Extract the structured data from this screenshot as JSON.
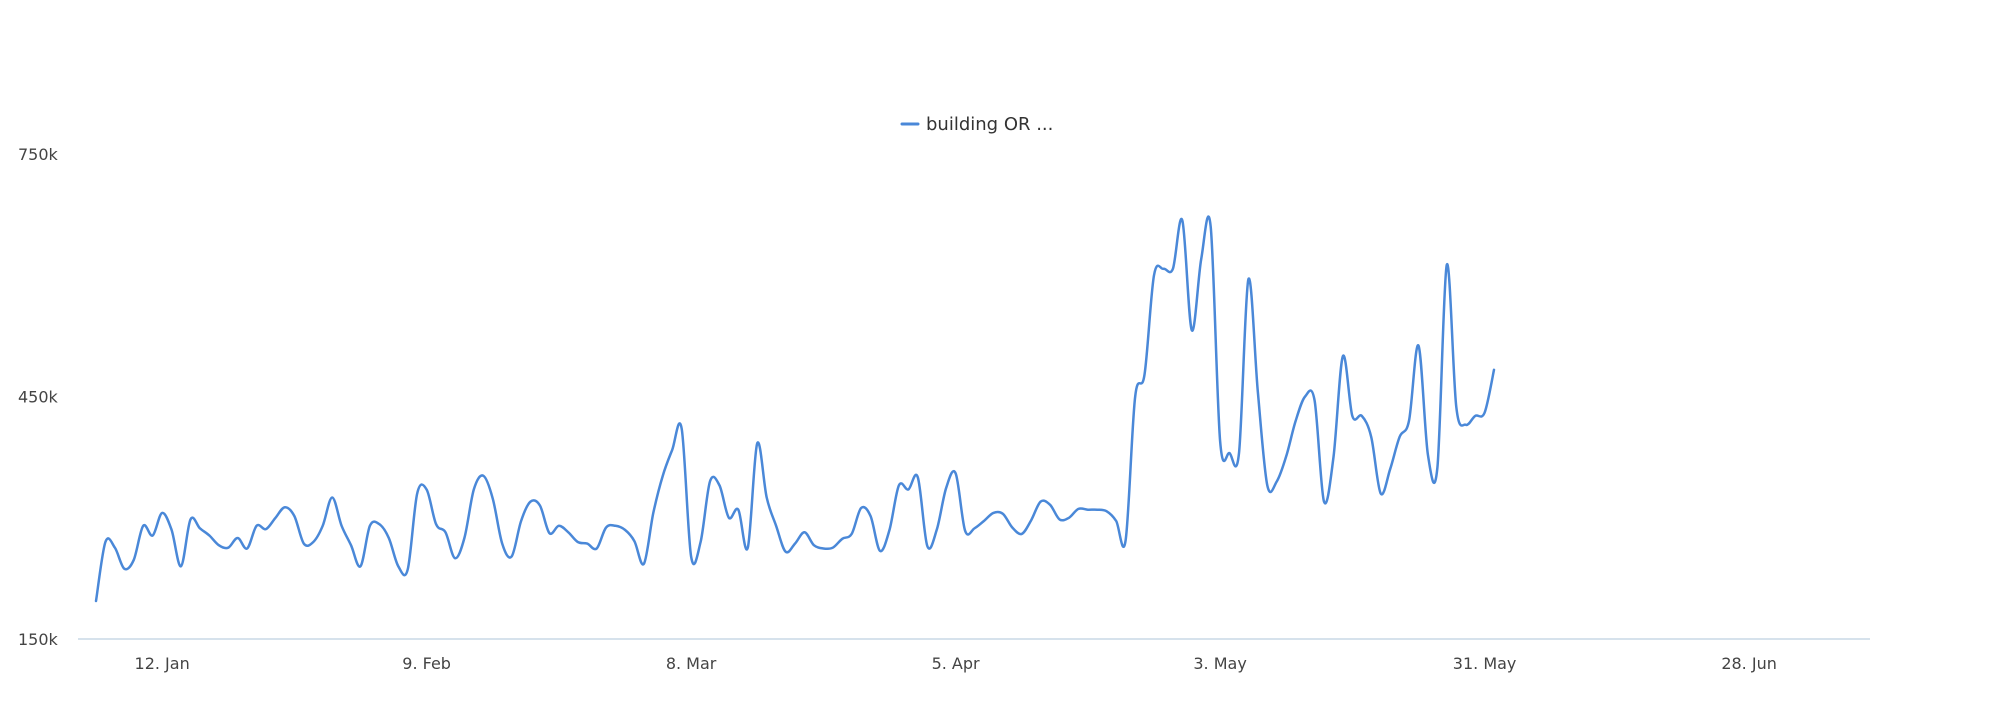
{
  "chart_data": {
    "type": "line",
    "title": "",
    "xlabel": "",
    "ylabel": "",
    "legend": {
      "placement": "top-center"
    },
    "grid": false,
    "x_start": "2020-01-05",
    "xlim": [
      "2020-01-05",
      "2020-07-09"
    ],
    "ylim": [
      150000,
      750000
    ],
    "yticks": [
      {
        "value": 150000,
        "label": "150k"
      },
      {
        "value": 450000,
        "label": "450k"
      },
      {
        "value": 750000,
        "label": "750k"
      }
    ],
    "xticks": [
      {
        "date": "2020-01-12",
        "label": "12. Jan"
      },
      {
        "date": "2020-02-09",
        "label": "9. Feb"
      },
      {
        "date": "2020-03-08",
        "label": "8. Mar"
      },
      {
        "date": "2020-04-05",
        "label": "5. Apr"
      },
      {
        "date": "2020-05-03",
        "label": "3. May"
      },
      {
        "date": "2020-05-31",
        "label": "31. May"
      },
      {
        "date": "2020-06-28",
        "label": "28. Jun"
      }
    ],
    "series": [
      {
        "name": "building OR ...",
        "color": "#4a88d8",
        "values": [
          197000,
          270000,
          263000,
          237000,
          248000,
          290000,
          278000,
          306000,
          285000,
          240000,
          298000,
          287000,
          278000,
          266000,
          263000,
          275000,
          262000,
          290000,
          286000,
          300000,
          313000,
          302000,
          268000,
          270000,
          290000,
          325000,
          290000,
          266000,
          240000,
          290000,
          292000,
          275000,
          240000,
          236000,
          330000,
          335000,
          292000,
          282000,
          250000,
          275000,
          335000,
          352000,
          324000,
          268000,
          252000,
          296000,
          320000,
          315000,
          281000,
          290000,
          282000,
          270000,
          268000,
          262000,
          288000,
          290000,
          285000,
          271000,
          243000,
          306000,
          352000,
          384000,
          410000,
          252000,
          270000,
          345000,
          340000,
          300000,
          310000,
          263000,
          392000,
          325000,
          290000,
          258000,
          268000,
          282000,
          266000,
          262000,
          263000,
          274000,
          280000,
          312000,
          302000,
          259000,
          285000,
          340000,
          335000,
          350000,
          265000,
          285000,
          337000,
          355000,
          284000,
          287000,
          296000,
          306000,
          305000,
          288000,
          280000,
          297000,
          320000,
          316000,
          298000,
          300000,
          311000,
          310000,
          310000,
          308000,
          296000,
          272000,
          449000,
          477000,
          600000,
          608000,
          608000,
          668000,
          532000,
          620000,
          660000,
          395000,
          380000,
          380000,
          595000,
          455000,
          340000,
          345000,
          376000,
          420000,
          450000,
          445000,
          320000,
          375000,
          500000,
          426000,
          426000,
          400000,
          330000,
          360000,
          400000,
          420000,
          513000,
          378000,
          362000,
          613000,
          437000,
          415000,
          426000,
          430000,
          483000
        ]
      }
    ]
  }
}
